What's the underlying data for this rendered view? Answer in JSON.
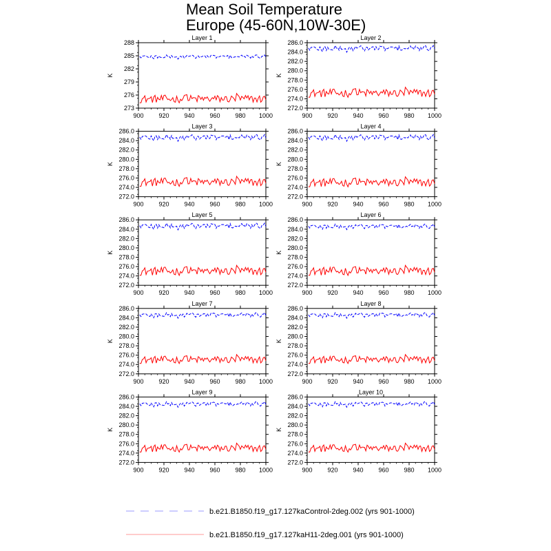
{
  "figure": {
    "title_line1": "Mean Soil Temperature",
    "title_line2": "Europe (45-60N,10W-30E)"
  },
  "legend": {
    "control_label": "b.e21.B1850.f19_g17.127kaControl-2deg.002 (yrs 901-1000)",
    "h11_label": "b.e21.B1850.f19_g17.127kaH11-2deg.001 (yrs 901-1000)"
  },
  "colors": {
    "control": "#0000ff",
    "h11": "#ff0000"
  },
  "chart_data": [
    {
      "type": "line",
      "title": "Layer 1",
      "xlabel": "",
      "ylabel": "K",
      "xlim": [
        900,
        1000
      ],
      "ylim": [
        273,
        288
      ],
      "xticks": [
        "900",
        "920",
        "940",
        "960",
        "980",
        "1000"
      ],
      "yticks": [
        "273",
        "276",
        "279",
        "282",
        "285",
        "288"
      ],
      "x_start": 901,
      "x_end": 1000,
      "series": [
        {
          "name": "b.e21.B1850.f19_g17.127kaControl-2deg.002 (yrs 901-1000)",
          "style": "dashed",
          "mean": 284.8,
          "amp": 0.4
        },
        {
          "name": "b.e21.B1850.f19_g17.127kaH11-2deg.001 (yrs 901-1000)",
          "style": "solid",
          "mean": 275.1,
          "amp": 0.9
        }
      ]
    },
    {
      "type": "line",
      "title": "Layer 2",
      "xlabel": "",
      "ylabel": "K",
      "xlim": [
        900,
        1000
      ],
      "ylim": [
        272,
        286
      ],
      "xticks": [
        "900",
        "920",
        "940",
        "960",
        "980",
        "1000"
      ],
      "yticks": [
        "272.0",
        "274.0",
        "276.0",
        "278.0",
        "280.0",
        "282.0",
        "284.0",
        "286.0"
      ],
      "x_start": 901,
      "x_end": 1000,
      "series": [
        {
          "name": "b.e21.B1850.f19_g17.127kaControl-2deg.002 (yrs 901-1000)",
          "style": "dashed",
          "mean": 284.8,
          "amp": 0.6
        },
        {
          "name": "b.e21.B1850.f19_g17.127kaH11-2deg.001 (yrs 901-1000)",
          "style": "solid",
          "mean": 275.2,
          "amp": 0.9
        }
      ]
    },
    {
      "type": "line",
      "title": "Layer 3",
      "xlabel": "",
      "ylabel": "K",
      "xlim": [
        900,
        1000
      ],
      "ylim": [
        272,
        286
      ],
      "xticks": [
        "900",
        "920",
        "940",
        "960",
        "980",
        "1000"
      ],
      "yticks": [
        "272.0",
        "274.0",
        "276.0",
        "278.0",
        "280.0",
        "282.0",
        "284.0",
        "286.0"
      ],
      "x_start": 901,
      "x_end": 1000,
      "series": [
        {
          "name": "b.e21.B1850.f19_g17.127kaControl-2deg.002 (yrs 901-1000)",
          "style": "dashed",
          "mean": 284.7,
          "amp": 0.6
        },
        {
          "name": "b.e21.B1850.f19_g17.127kaH11-2deg.001 (yrs 901-1000)",
          "style": "solid",
          "mean": 275.1,
          "amp": 0.9
        }
      ]
    },
    {
      "type": "line",
      "title": "Layer 4",
      "xlabel": "",
      "ylabel": "K",
      "xlim": [
        900,
        1000
      ],
      "ylim": [
        272,
        286
      ],
      "xticks": [
        "900",
        "920",
        "940",
        "960",
        "980",
        "1000"
      ],
      "yticks": [
        "272.0",
        "274.0",
        "276.0",
        "278.0",
        "280.0",
        "282.0",
        "284.0",
        "286.0"
      ],
      "x_start": 901,
      "x_end": 1000,
      "series": [
        {
          "name": "b.e21.B1850.f19_g17.127kaControl-2deg.002 (yrs 901-1000)",
          "style": "dashed",
          "mean": 284.7,
          "amp": 0.6
        },
        {
          "name": "b.e21.B1850.f19_g17.127kaH11-2deg.001 (yrs 901-1000)",
          "style": "solid",
          "mean": 275.0,
          "amp": 0.9
        }
      ]
    },
    {
      "type": "line",
      "title": "Layer 5",
      "xlabel": "",
      "ylabel": "K",
      "xlim": [
        900,
        1000
      ],
      "ylim": [
        272,
        286
      ],
      "xticks": [
        "900",
        "920",
        "940",
        "960",
        "980",
        "1000"
      ],
      "yticks": [
        "272.0",
        "274.0",
        "276.0",
        "278.0",
        "280.0",
        "282.0",
        "284.0",
        "286.0"
      ],
      "x_start": 901,
      "x_end": 1000,
      "series": [
        {
          "name": "b.e21.B1850.f19_g17.127kaControl-2deg.002 (yrs 901-1000)",
          "style": "dashed",
          "mean": 284.7,
          "amp": 0.6
        },
        {
          "name": "b.e21.B1850.f19_g17.127kaH11-2deg.001 (yrs 901-1000)",
          "style": "solid",
          "mean": 275.0,
          "amp": 0.9
        }
      ]
    },
    {
      "type": "line",
      "title": "Layer 6",
      "xlabel": "",
      "ylabel": "K",
      "xlim": [
        900,
        1000
      ],
      "ylim": [
        272,
        286
      ],
      "xticks": [
        "900",
        "920",
        "940",
        "960",
        "980",
        "1000"
      ],
      "yticks": [
        "272.0",
        "274.0",
        "276.0",
        "278.0",
        "280.0",
        "282.0",
        "284.0",
        "286.0"
      ],
      "x_start": 901,
      "x_end": 1000,
      "series": [
        {
          "name": "b.e21.B1850.f19_g17.127kaControl-2deg.002 (yrs 901-1000)",
          "style": "dashed",
          "mean": 284.6,
          "amp": 0.5
        },
        {
          "name": "b.e21.B1850.f19_g17.127kaH11-2deg.001 (yrs 901-1000)",
          "style": "solid",
          "mean": 275.0,
          "amp": 0.9
        }
      ]
    },
    {
      "type": "line",
      "title": "Layer 7",
      "xlabel": "",
      "ylabel": "K",
      "xlim": [
        900,
        1000
      ],
      "ylim": [
        272,
        286
      ],
      "xticks": [
        "900",
        "920",
        "940",
        "960",
        "980",
        "1000"
      ],
      "yticks": [
        "272.0",
        "274.0",
        "276.0",
        "278.0",
        "280.0",
        "282.0",
        "284.0",
        "286.0"
      ],
      "x_start": 901,
      "x_end": 1000,
      "series": [
        {
          "name": "b.e21.B1850.f19_g17.127kaControl-2deg.002 (yrs 901-1000)",
          "style": "dashed",
          "mean": 284.6,
          "amp": 0.5
        },
        {
          "name": "b.e21.B1850.f19_g17.127kaH11-2deg.001 (yrs 901-1000)",
          "style": "solid",
          "mean": 275.0,
          "amp": 0.8
        }
      ]
    },
    {
      "type": "line",
      "title": "Layer 8",
      "xlabel": "",
      "ylabel": "K",
      "xlim": [
        900,
        1000
      ],
      "ylim": [
        272,
        286
      ],
      "xticks": [
        "900",
        "920",
        "940",
        "960",
        "980",
        "1000"
      ],
      "yticks": [
        "272.0",
        "274.0",
        "276.0",
        "278.0",
        "280.0",
        "282.0",
        "284.0",
        "286.0"
      ],
      "x_start": 901,
      "x_end": 1000,
      "series": [
        {
          "name": "b.e21.B1850.f19_g17.127kaControl-2deg.002 (yrs 901-1000)",
          "style": "dashed",
          "mean": 284.6,
          "amp": 0.5
        },
        {
          "name": "b.e21.B1850.f19_g17.127kaH11-2deg.001 (yrs 901-1000)",
          "style": "solid",
          "mean": 275.0,
          "amp": 0.8
        }
      ]
    },
    {
      "type": "line",
      "title": "Layer 9",
      "xlabel": "",
      "ylabel": "K",
      "xlim": [
        900,
        1000
      ],
      "ylim": [
        272,
        286
      ],
      "xticks": [
        "900",
        "920",
        "940",
        "960",
        "980",
        "1000"
      ],
      "yticks": [
        "272.0",
        "274.0",
        "276.0",
        "278.0",
        "280.0",
        "282.0",
        "284.0",
        "286.0"
      ],
      "x_start": 901,
      "x_end": 1000,
      "series": [
        {
          "name": "b.e21.B1850.f19_g17.127kaControl-2deg.002 (yrs 901-1000)",
          "style": "dashed",
          "mean": 284.5,
          "amp": 0.5
        },
        {
          "name": "b.e21.B1850.f19_g17.127kaH11-2deg.001 (yrs 901-1000)",
          "style": "solid",
          "mean": 275.0,
          "amp": 0.8
        }
      ]
    },
    {
      "type": "line",
      "title": "Layer 10",
      "xlabel": "",
      "ylabel": "K",
      "xlim": [
        900,
        1000
      ],
      "ylim": [
        272,
        286
      ],
      "xticks": [
        "900",
        "920",
        "940",
        "960",
        "980",
        "1000"
      ],
      "yticks": [
        "272.0",
        "274.0",
        "276.0",
        "278.0",
        "280.0",
        "282.0",
        "284.0",
        "286.0"
      ],
      "x_start": 901,
      "x_end": 1000,
      "series": [
        {
          "name": "b.e21.B1850.f19_g17.127kaControl-2deg.002 (yrs 901-1000)",
          "style": "dashed",
          "mean": 284.5,
          "amp": 0.5
        },
        {
          "name": "b.e21.B1850.f19_g17.127kaH11-2deg.001 (yrs 901-1000)",
          "style": "solid",
          "mean": 275.0,
          "amp": 0.8
        }
      ]
    }
  ]
}
